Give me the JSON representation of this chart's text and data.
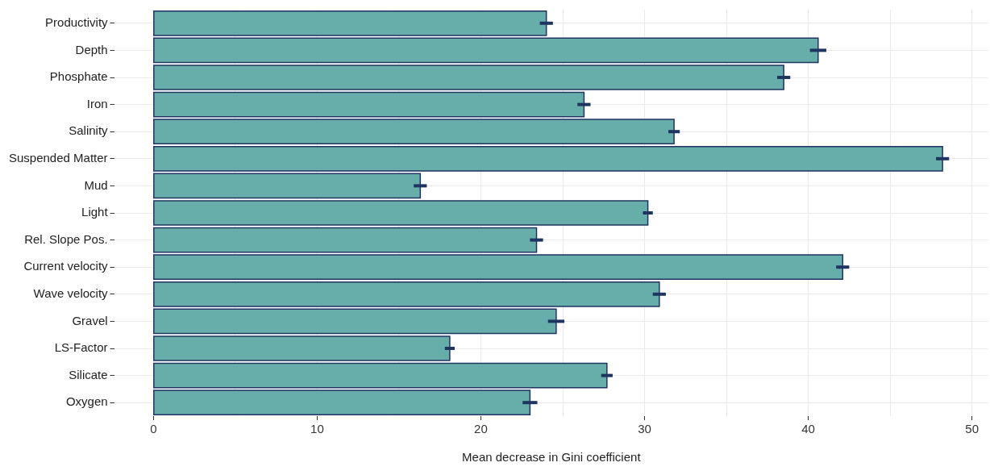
{
  "chart_data": {
    "type": "bar",
    "orientation": "horizontal",
    "xlabel": "Mean decrease in Gini coefficient",
    "categories": [
      "Productivity",
      "Depth",
      "Phosphate",
      "Iron",
      "Salinity",
      "Suspended Matter",
      "Mud",
      "Light",
      "Rel. Slope Pos.",
      "Current velocity",
      "Wave velocity",
      "Gravel",
      "LS-Factor",
      "Silicate",
      "Oxygen"
    ],
    "values": [
      24.0,
      40.6,
      38.5,
      26.3,
      31.8,
      48.2,
      16.3,
      30.2,
      23.4,
      42.1,
      30.9,
      24.6,
      18.1,
      27.7,
      23.0
    ],
    "errors": [
      0.4,
      0.5,
      0.4,
      0.4,
      0.35,
      0.4,
      0.4,
      0.3,
      0.4,
      0.4,
      0.4,
      0.5,
      0.3,
      0.35,
      0.45
    ],
    "color": "#67aeab",
    "xlim": [
      -2.4,
      51
    ],
    "xticks": [
      0,
      {
        "value": 5,
        "label": null
      },
      10,
      {
        "value": 15,
        "label": null
      },
      20,
      {
        "value": 25,
        "label": null
      },
      30,
      {
        "value": 35,
        "label": null
      },
      40,
      {
        "value": 45,
        "label": null
      },
      50
    ],
    "grid": true,
    "legend": false
  }
}
